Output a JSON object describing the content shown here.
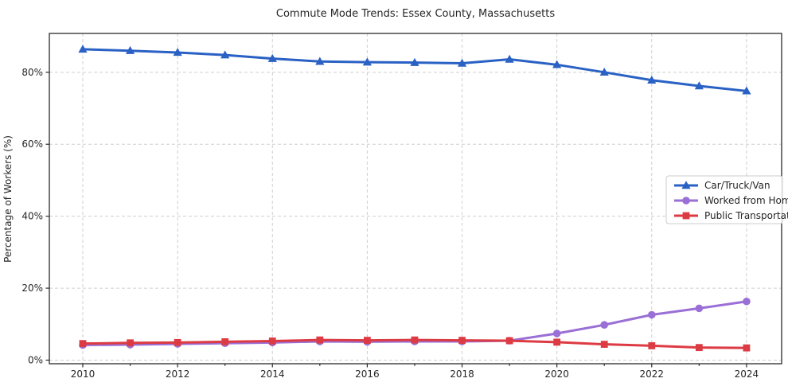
{
  "chart_data": {
    "type": "line",
    "title": "Commute Mode Trends: Essex County, Massachusetts",
    "xlabel": "",
    "ylabel": "Percentage of Workers (%)",
    "x": [
      2010,
      2011,
      2012,
      2013,
      2014,
      2015,
      2016,
      2017,
      2018,
      2019,
      2020,
      2021,
      2022,
      2023,
      2024
    ],
    "series": [
      {
        "name": "Car/Truck/Van",
        "marker": "triangle",
        "color": "#2a61c4",
        "values": [
          86.4,
          86.0,
          85.5,
          84.8,
          83.8,
          83.0,
          82.8,
          82.7,
          82.5,
          83.6,
          82.1,
          80.0,
          77.8,
          76.2,
          74.8
        ]
      },
      {
        "name": "Worked from Home",
        "marker": "circle",
        "color": "#9a6fd6",
        "values": [
          4.2,
          4.3,
          4.5,
          4.7,
          4.9,
          5.2,
          5.1,
          5.2,
          5.2,
          5.4,
          7.4,
          9.8,
          12.6,
          14.4,
          16.3
        ]
      },
      {
        "name": "Public Transportation",
        "marker": "square",
        "color": "#dd3b43",
        "values": [
          4.6,
          4.8,
          4.9,
          5.1,
          5.3,
          5.6,
          5.5,
          5.6,
          5.5,
          5.4,
          5.0,
          4.4,
          4.0,
          3.5,
          3.4
        ]
      }
    ],
    "xticks": [
      2010,
      2012,
      2014,
      2016,
      2018,
      2020,
      2022,
      2024
    ],
    "ytick_labels": [
      "0%",
      "20%",
      "40%",
      "60%",
      "80%"
    ],
    "ytick_values": [
      0,
      20,
      40,
      60,
      80
    ],
    "xlim": [
      2009.295,
      2024.74
    ],
    "ylim": [
      -1,
      90.8
    ],
    "grid": true,
    "grid_style": "dashed",
    "legend_position": "center-right"
  },
  "colors": {
    "grid": "#cfcfcf",
    "spine": "#2b2b2b",
    "legend_border": "#cccccc",
    "background": "#ffffff"
  }
}
